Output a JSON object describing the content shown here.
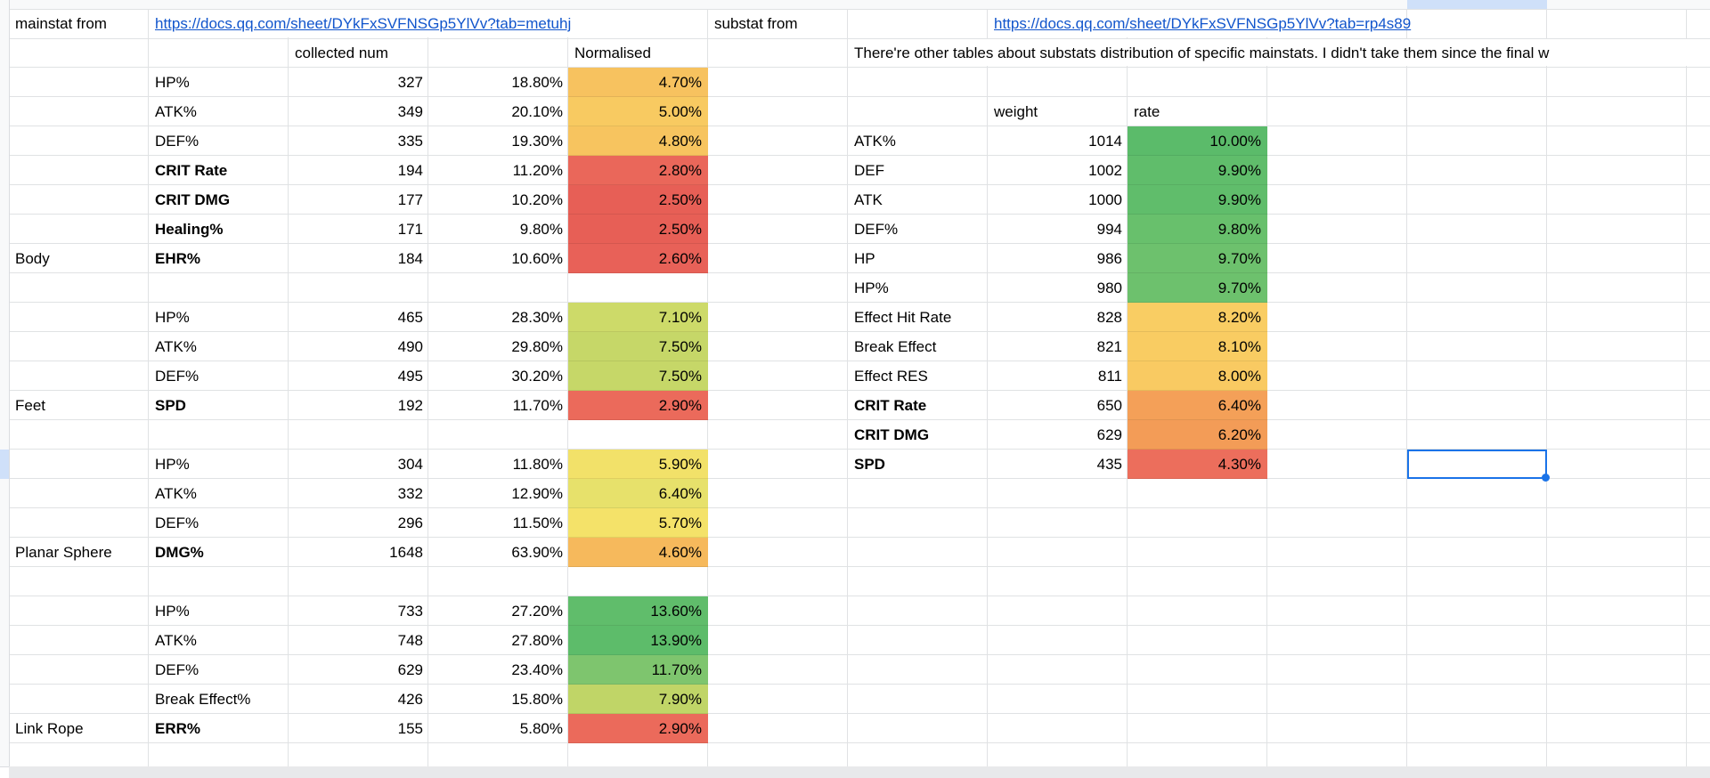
{
  "sheet": {
    "row1": {
      "mainstat_label": "mainstat from",
      "mainstat_url": "https://docs.qq.com/sheet/DYkFxSVFNSGp5YlVv?tab=metuhj",
      "substat_label": "substat from",
      "substat_url": "https://docs.qq.com/sheet/DYkFxSVFNSGp5YlVv?tab=rp4s89"
    },
    "row2": {
      "collected_header": "collected num",
      "normalised_header": "Normalised",
      "note": "There're other tables about substats distribution of specific mainstats. I didn't take them since the final w"
    },
    "right_header": {
      "weight": "weight",
      "rate": "rate"
    }
  },
  "colors": {
    "selection": "#1a73e8",
    "link": "#1155cc",
    "gridline": "#e0e2e4"
  },
  "left_table": {
    "rows": [
      {
        "stat": "HP%",
        "num": "327",
        "pct": "18.80%",
        "norm": "4.70%",
        "color": "#f7c25f"
      },
      {
        "stat": "ATK%",
        "num": "349",
        "pct": "20.10%",
        "norm": "5.00%",
        "color": "#f8ca61"
      },
      {
        "stat": "DEF%",
        "num": "335",
        "pct": "19.30%",
        "norm": "4.80%",
        "color": "#f7c45f"
      },
      {
        "stat": "CRIT Rate",
        "bold": true,
        "num": "194",
        "pct": "11.20%",
        "norm": "2.80%",
        "color": "#ea675a"
      },
      {
        "stat": "CRIT DMG",
        "bold": true,
        "num": "177",
        "pct": "10.20%",
        "norm": "2.50%",
        "color": "#e75f56"
      },
      {
        "stat": "Healing%",
        "bold": true,
        "num": "171",
        "pct": "9.80%",
        "norm": "2.50%",
        "color": "#e75f56"
      },
      {
        "group": "Body",
        "stat": "EHR%",
        "bold": true,
        "num": "184",
        "pct": "10.60%",
        "norm": "2.60%",
        "color": "#e86158"
      },
      {},
      {
        "stat": "HP%",
        "num": "465",
        "pct": "28.30%",
        "norm": "7.10%",
        "color": "#cdda69"
      },
      {
        "stat": "ATK%",
        "num": "490",
        "pct": "29.80%",
        "norm": "7.50%",
        "color": "#c6d768"
      },
      {
        "stat": "DEF%",
        "num": "495",
        "pct": "30.20%",
        "norm": "7.50%",
        "color": "#c6d768"
      },
      {
        "group": "Feet",
        "stat": "SPD",
        "bold": true,
        "num": "192",
        "pct": "11.70%",
        "norm": "2.90%",
        "color": "#eb6a5b"
      },
      {},
      {
        "stat": "HP%",
        "num": "304",
        "pct": "11.80%",
        "norm": "5.90%",
        "color": "#f2e169"
      },
      {
        "stat": "ATK%",
        "num": "332",
        "pct": "12.90%",
        "norm": "6.40%",
        "color": "#e7e16b"
      },
      {
        "stat": "DEF%",
        "num": "296",
        "pct": "11.50%",
        "norm": "5.70%",
        "color": "#f4e269"
      },
      {
        "group": "Planar Sphere",
        "stat": "DMG%",
        "bold": true,
        "num": "1648",
        "pct": "63.90%",
        "norm": "4.60%",
        "color": "#f6b95c"
      },
      {},
      {
        "stat": "HP%",
        "num": "733",
        "pct": "27.20%",
        "norm": "13.60%",
        "color": "#60bd6b"
      },
      {
        "stat": "ATK%",
        "num": "748",
        "pct": "27.80%",
        "norm": "13.90%",
        "color": "#5dbc6a"
      },
      {
        "stat": "DEF%",
        "num": "629",
        "pct": "23.40%",
        "norm": "11.70%",
        "color": "#7ec56e"
      },
      {
        "stat": "Break Effect%",
        "num": "426",
        "pct": "15.80%",
        "norm": "7.90%",
        "color": "#c0d567"
      },
      {
        "group": "Link Rope",
        "stat": "ERR%",
        "bold": true,
        "num": "155",
        "pct": "5.80%",
        "norm": "2.90%",
        "color": "#eb6a5b"
      },
      {}
    ]
  },
  "right_table": {
    "rows": [
      {
        "stat": "ATK%",
        "weight": "1014",
        "rate": "10.00%",
        "color": "#5bbb6a"
      },
      {
        "stat": "DEF",
        "weight": "1002",
        "rate": "9.90%",
        "color": "#60bd6b"
      },
      {
        "stat": "ATK",
        "weight": "1000",
        "rate": "9.90%",
        "color": "#60bd6b"
      },
      {
        "stat": "DEF%",
        "weight": "994",
        "rate": "9.80%",
        "color": "#68c06c"
      },
      {
        "stat": "HP",
        "weight": "986",
        "rate": "9.70%",
        "color": "#6dc16d"
      },
      {
        "stat": "HP%",
        "weight": "980",
        "rate": "9.70%",
        "color": "#6dc16d"
      },
      {
        "stat": "Effect Hit Rate",
        "weight": "828",
        "rate": "8.20%",
        "color": "#f9cd63"
      },
      {
        "stat": "Break Effect",
        "weight": "821",
        "rate": "8.10%",
        "color": "#f9cc62"
      },
      {
        "stat": "Effect RES",
        "weight": "811",
        "rate": "8.00%",
        "color": "#f9ca62"
      },
      {
        "stat": "CRIT Rate",
        "bold": true,
        "weight": "650",
        "rate": "6.40%",
        "color": "#f4a058"
      },
      {
        "stat": "CRIT DMG",
        "bold": true,
        "weight": "629",
        "rate": "6.20%",
        "color": "#f39c57"
      },
      {
        "stat": "SPD",
        "bold": true,
        "weight": "435",
        "rate": "4.30%",
        "color": "#ec6e5c"
      }
    ]
  }
}
